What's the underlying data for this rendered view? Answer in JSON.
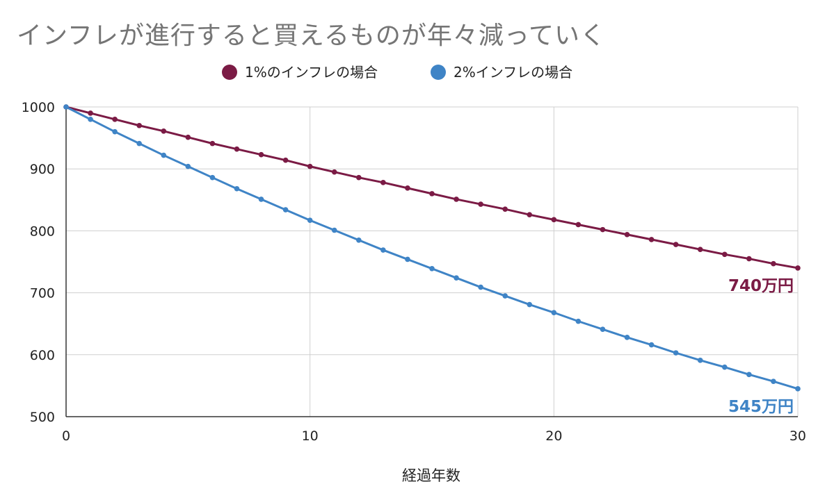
{
  "title": "インフレが進行すると買えるものが年々減っていく",
  "chart_data": {
    "type": "line",
    "title": "インフレが進行すると買えるものが年々減っていく",
    "xlabel": "経過年数",
    "ylabel": "",
    "xlim": [
      0,
      30
    ],
    "ylim": [
      500,
      1000
    ],
    "x_ticks": [
      "0",
      "10",
      "20",
      "30"
    ],
    "y_ticks": [
      "500",
      "600",
      "700",
      "800",
      "900",
      "1000"
    ],
    "grid": true,
    "legend_position": "top-center",
    "x": [
      0,
      1,
      2,
      3,
      4,
      5,
      6,
      7,
      8,
      9,
      10,
      11,
      12,
      13,
      14,
      15,
      16,
      17,
      18,
      19,
      20,
      21,
      22,
      23,
      24,
      25,
      26,
      27,
      28,
      29,
      30
    ],
    "series": [
      {
        "name": "1%のインフレの場合",
        "color": "#7b1b45",
        "end_label": "740万円",
        "values": [
          1000,
          990,
          980,
          970,
          961,
          951,
          941,
          932,
          923,
          914,
          904,
          895,
          886,
          878,
          869,
          860,
          851,
          843,
          835,
          826,
          818,
          810,
          802,
          794,
          786,
          778,
          770,
          762,
          755,
          747,
          740
        ]
      },
      {
        "name": "2%インフレの場合",
        "color": "#3f84c6",
        "end_label": "545万円",
        "values": [
          1000,
          980,
          960,
          941,
          922,
          904,
          886,
          868,
          851,
          834,
          817,
          801,
          785,
          769,
          754,
          739,
          724,
          709,
          695,
          681,
          668,
          654,
          641,
          628,
          616,
          603,
          591,
          580,
          568,
          557,
          545
        ]
      }
    ]
  }
}
